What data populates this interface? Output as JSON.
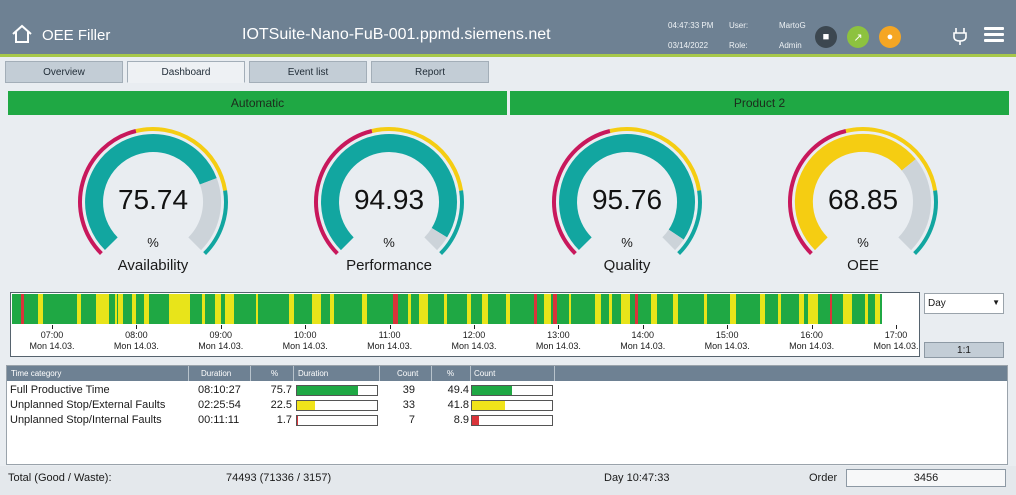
{
  "header": {
    "title": "OEE Filler",
    "device": "IOTSuite-Nano-FuB-001.ppmd.siemens.net",
    "time": "04:47:33 PM",
    "date": "03/14/2022",
    "user_label": "User:",
    "user_value": "MartoG",
    "role_label": "Role:",
    "role_value": "Admin",
    "buttons": [
      {
        "icon": "cube-icon",
        "color": "#3c4750"
      },
      {
        "icon": "connection-icon",
        "color": "#8dc23f"
      },
      {
        "icon": "alarm-icon",
        "color": "#f5a623"
      }
    ]
  },
  "tabs": [
    {
      "label": "Overview",
      "active": false
    },
    {
      "label": "Dashboard",
      "active": true
    },
    {
      "label": "Event list",
      "active": false
    },
    {
      "label": "Report",
      "active": false
    }
  ],
  "status": {
    "mode": "Automatic",
    "product": "Product 2"
  },
  "gauges": [
    {
      "value": "75.74",
      "fraction": 0.7574,
      "unit": "%",
      "label": "Availability"
    },
    {
      "value": "94.93",
      "fraction": 0.9493,
      "unit": "%",
      "label": "Performance"
    },
    {
      "value": "95.76",
      "fraction": 0.9576,
      "unit": "%",
      "label": "Quality"
    },
    {
      "value": "68.85",
      "fraction": 0.6885,
      "unit": "%",
      "label": "OEE"
    }
  ],
  "gauge_colors": {
    "good": "#12a6a0",
    "warn": "#f5cd12",
    "bad": "#c8185c",
    "rest": "#ccd3d9"
  },
  "timeline": {
    "ticks": [
      {
        "time": "07:00",
        "date": "Mon 14.03."
      },
      {
        "time": "08:00",
        "date": "Mon 14.03."
      },
      {
        "time": "09:00",
        "date": "Mon 14.03."
      },
      {
        "time": "10:00",
        "date": "Mon 14.03."
      },
      {
        "time": "11:00",
        "date": "Mon 14.03."
      },
      {
        "time": "12:00",
        "date": "Mon 14.03."
      },
      {
        "time": "13:00",
        "date": "Mon 14.03."
      },
      {
        "time": "14:00",
        "date": "Mon 14.03."
      },
      {
        "time": "15:00",
        "date": "Mon 14.03."
      },
      {
        "time": "16:00",
        "date": "Mon 14.03."
      },
      {
        "time": "17:00",
        "date": "Mon 14.03."
      }
    ],
    "range_select": "Day",
    "zoom_button": "1:1",
    "colors": {
      "productive": "#1fa844",
      "external": "#e8e41a",
      "internal": "#d9343a"
    }
  },
  "table": {
    "headers": [
      "Time category",
      "Duration",
      "%",
      "Duration",
      "Count",
      "%",
      "Count"
    ],
    "rows": [
      {
        "category": "Full Productive Time",
        "duration": "08:10:27",
        "pct": "75.7",
        "pct_fraction": 0.757,
        "count": "39",
        "count_pct": "49.4",
        "count_fraction": 0.494,
        "color": "#1fa844"
      },
      {
        "category": "Unplanned Stop/External Faults",
        "duration": "02:25:54",
        "pct": "22.5",
        "pct_fraction": 0.225,
        "count": "33",
        "count_pct": "41.8",
        "count_fraction": 0.418,
        "color": "#f0e41a"
      },
      {
        "category": "Unplanned Stop/Internal Faults",
        "duration": "00:11:11",
        "pct": "1.7",
        "pct_fraction": 0.017,
        "count": "7",
        "count_pct": "8.9",
        "count_fraction": 0.089,
        "color": "#d9343a"
      }
    ]
  },
  "footer": {
    "total_label": "Total (Good / Waste):",
    "total_value": "74493 (71336 / 3157)",
    "day": "Day 10:47:33",
    "order_label": "Order",
    "order_value": "3456"
  }
}
